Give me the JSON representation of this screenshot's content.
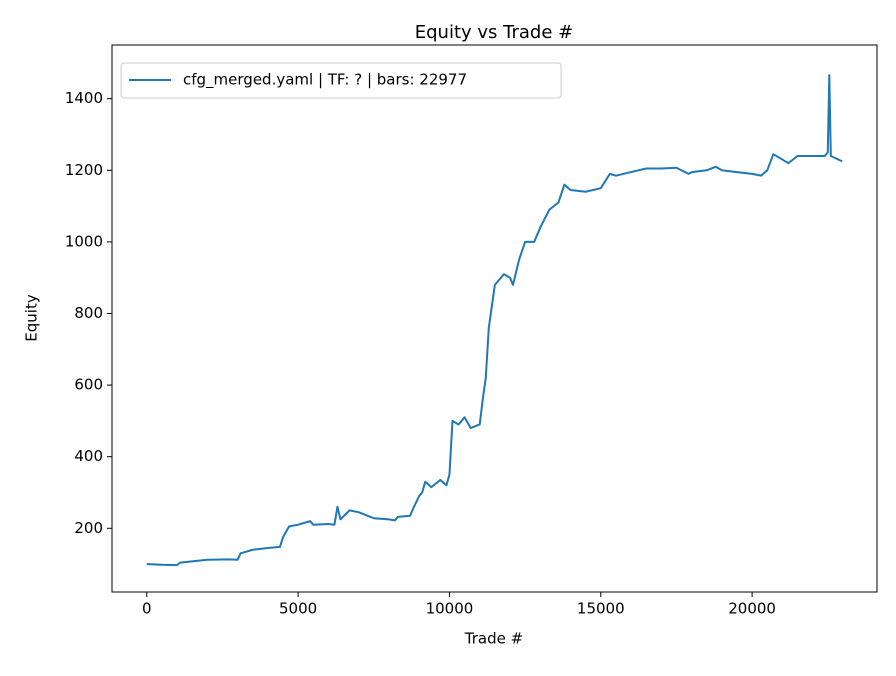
{
  "chart_data": {
    "type": "line",
    "title": "Equity vs Trade #",
    "xlabel": "Trade #",
    "ylabel": "Equity",
    "x": [
      0,
      500,
      1000,
      1100,
      2000,
      2700,
      3000,
      3100,
      3500,
      4000,
      4400,
      4500,
      4700,
      5000,
      5400,
      5500,
      6000,
      6200,
      6300,
      6400,
      6700,
      7000,
      7500,
      8000,
      8200,
      8300,
      8700,
      8800,
      9000,
      9100,
      9200,
      9400,
      9700,
      9900,
      10000,
      10100,
      10300,
      10500,
      10700,
      11000,
      11100,
      11200,
      11300,
      11500,
      11800,
      12000,
      12100,
      12300,
      12500,
      12800,
      13000,
      13300,
      13600,
      13800,
      14000,
      14500,
      15000,
      15300,
      15500,
      16000,
      16500,
      17000,
      17500,
      17900,
      18000,
      18500,
      18800,
      19000,
      19500,
      20000,
      20300,
      20500,
      20700,
      21000,
      21200,
      21500,
      22000,
      22400,
      22500,
      22550,
      22600,
      22977
    ],
    "series": [
      {
        "name": "cfg_merged.yaml | TF: ? | bars: 22977",
        "color": "#1f77b4",
        "values": [
          100,
          98,
          97,
          104,
          112,
          113,
          112,
          130,
          140,
          145,
          148,
          175,
          205,
          210,
          220,
          210,
          212,
          210,
          260,
          225,
          250,
          245,
          228,
          225,
          222,
          232,
          235,
          255,
          290,
          300,
          330,
          315,
          335,
          320,
          350,
          500,
          490,
          510,
          480,
          490,
          560,
          620,
          760,
          880,
          910,
          900,
          880,
          950,
          1000,
          1000,
          1040,
          1090,
          1110,
          1160,
          1145,
          1140,
          1150,
          1190,
          1185,
          1195,
          1205,
          1205,
          1207,
          1190,
          1195,
          1200,
          1210,
          1200,
          1195,
          1190,
          1185,
          1200,
          1245,
          1230,
          1220,
          1240,
          1240,
          1240,
          1250,
          1466,
          1240,
          1225
        ]
      }
    ],
    "xlim": [
      -1149,
      24126
    ],
    "ylim": [
      22,
      1550
    ],
    "xticks": [
      0,
      5000,
      10000,
      15000,
      20000
    ],
    "yticks": [
      200,
      400,
      600,
      800,
      1000,
      1200,
      1400
    ],
    "legend": "upper left",
    "grid": false
  }
}
